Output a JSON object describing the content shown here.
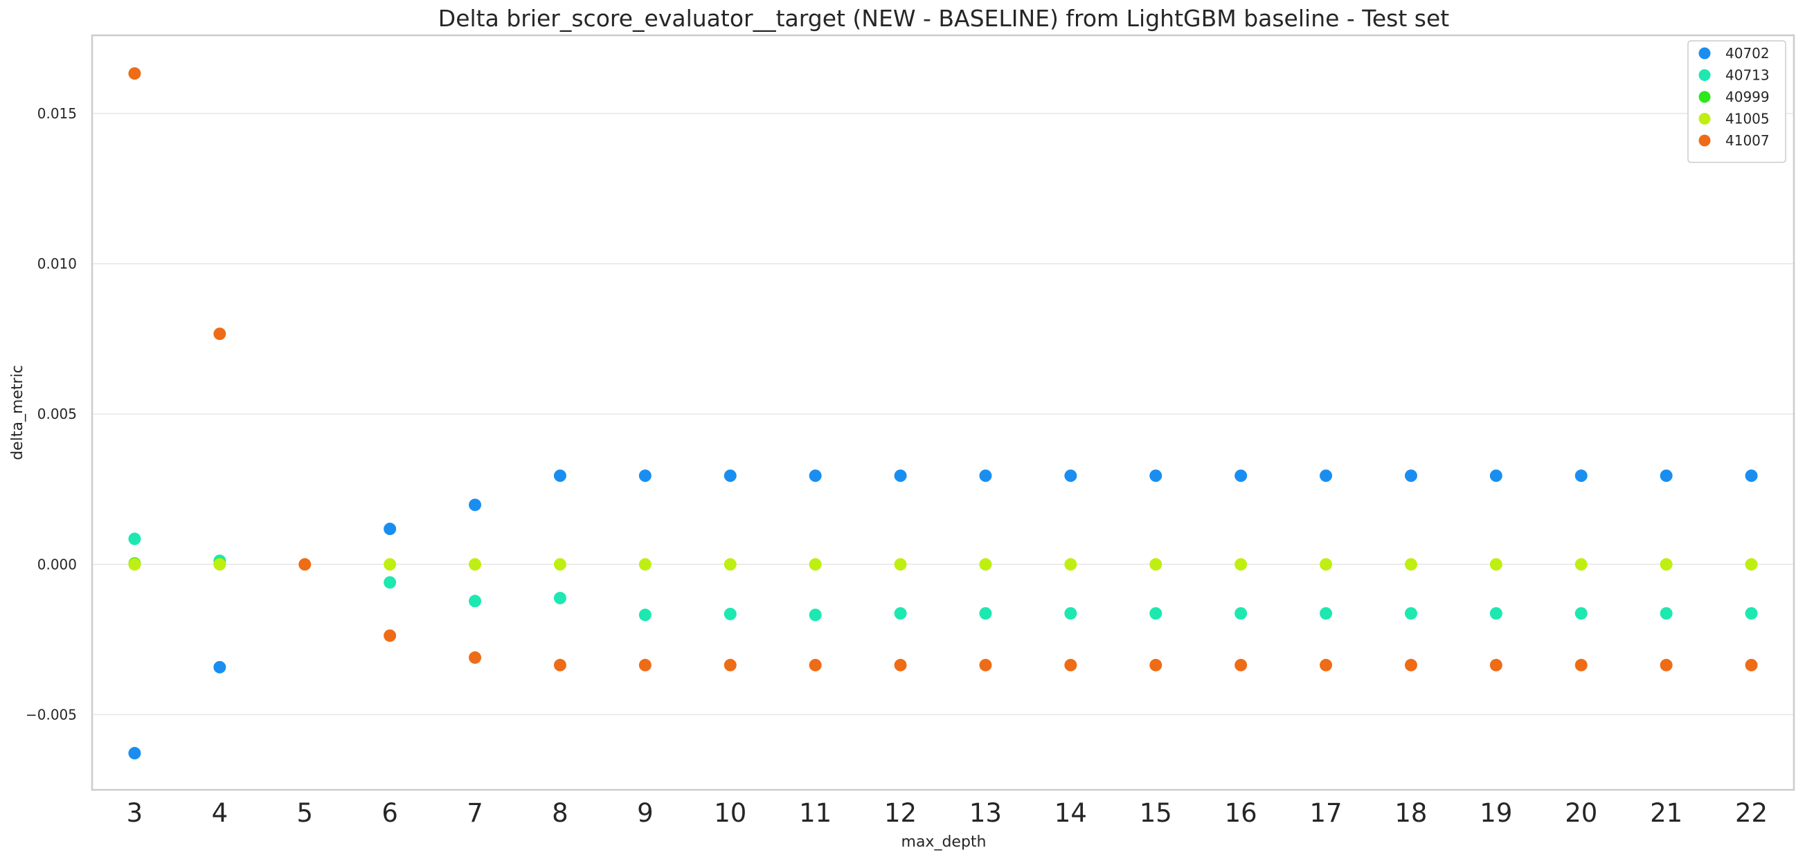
{
  "chart_data": {
    "type": "scatter",
    "title": "Delta brier_score_evaluator__target (NEW - BASELINE) from LightGBM baseline - Test set",
    "xlabel": "max_depth",
    "ylabel": "delta_metric",
    "categories": [
      "3",
      "4",
      "5",
      "6",
      "7",
      "8",
      "9",
      "10",
      "11",
      "12",
      "13",
      "14",
      "15",
      "16",
      "17",
      "18",
      "19",
      "20",
      "21",
      "22"
    ],
    "ylim": [
      -0.0075,
      0.0176
    ],
    "yticks": [
      {
        "value": -0.005,
        "label": "−0.005"
      },
      {
        "value": 0.0,
        "label": "0.000"
      },
      {
        "value": 0.005,
        "label": "0.005"
      },
      {
        "value": 0.01,
        "label": "0.010"
      },
      {
        "value": 0.015,
        "label": "0.015"
      }
    ],
    "grid": "horizontal",
    "legend_position": "top-right",
    "series": [
      {
        "name": "40702",
        "color": "#1a8ef0",
        "values": [
          -0.00628,
          -0.00342,
          null,
          0.00118,
          0.00198,
          0.00295,
          0.00295,
          0.00295,
          0.00295,
          0.00295,
          0.00295,
          0.00295,
          0.00295,
          0.00295,
          0.00295,
          0.00295,
          0.00295,
          0.00295,
          0.00295,
          0.00295
        ]
      },
      {
        "name": "40713",
        "color": "#1de8b0",
        "values": [
          0.00085,
          0.00012,
          null,
          -0.0006,
          -0.00122,
          -0.00112,
          -0.00168,
          -0.00165,
          -0.00168,
          -0.00163,
          -0.00163,
          -0.00163,
          -0.00163,
          -0.00163,
          -0.00163,
          -0.00163,
          -0.00163,
          -0.00163,
          -0.00163,
          -0.00163
        ]
      },
      {
        "name": "40999",
        "color": "#2ee81a",
        "values": [
          3e-05,
          2e-05,
          null,
          null,
          null,
          null,
          null,
          null,
          null,
          null,
          null,
          null,
          null,
          null,
          null,
          null,
          null,
          null,
          null,
          null
        ]
      },
      {
        "name": "41005",
        "color": "#bfef12",
        "values": [
          0.0,
          0.0,
          null,
          0.0,
          0.0,
          0.0,
          0.0,
          0.0,
          0.0,
          0.0,
          0.0,
          0.0,
          0.0,
          0.0,
          0.0,
          0.0,
          0.0,
          0.0,
          0.0,
          0.0
        ]
      },
      {
        "name": "41007",
        "color": "#ee6c16",
        "values": [
          0.01633,
          0.00767,
          0.0,
          -0.00237,
          -0.0031,
          -0.00335,
          -0.00335,
          -0.00335,
          -0.00335,
          -0.00335,
          -0.00335,
          -0.00335,
          -0.00335,
          -0.00335,
          -0.00335,
          -0.00335,
          -0.00335,
          -0.00335,
          -0.00335,
          -0.00335
        ]
      }
    ]
  }
}
